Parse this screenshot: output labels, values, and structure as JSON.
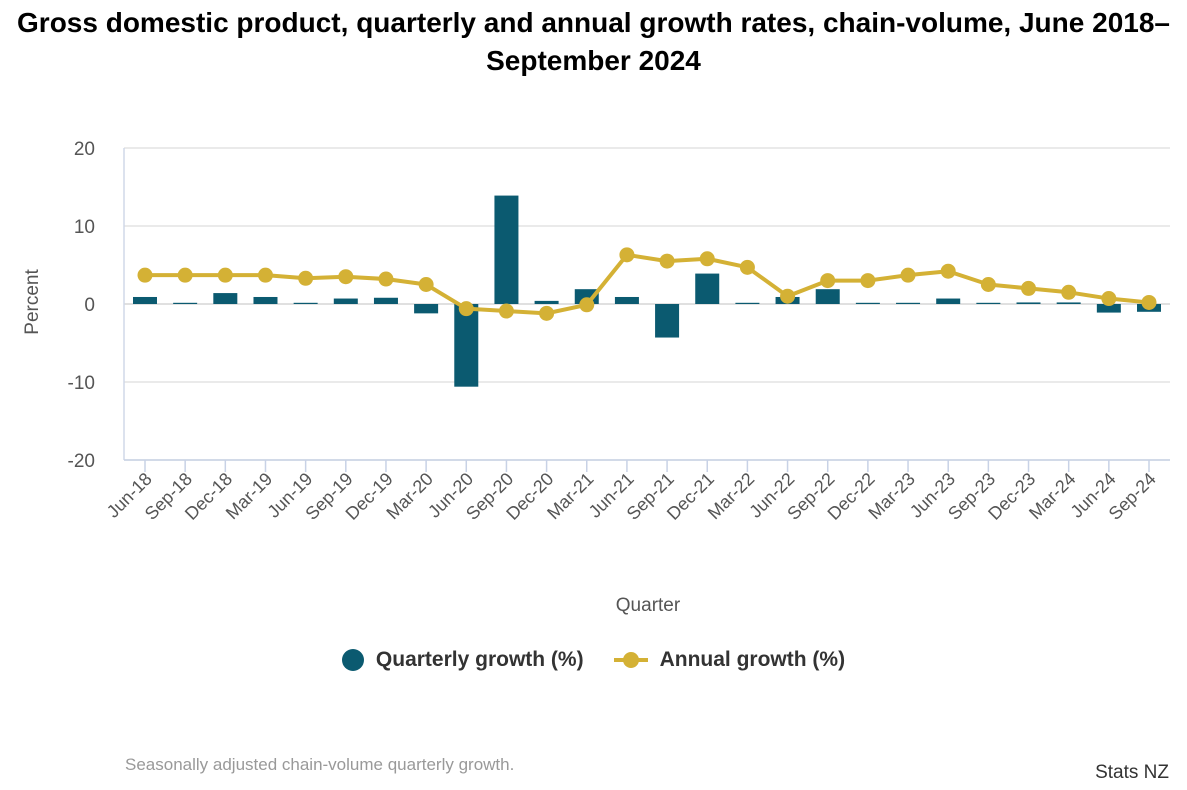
{
  "chart_data": {
    "type": "bar",
    "title": "Gross domestic product, quarterly and annual growth rates, chain-volume, June 2018–September 2024",
    "xlabel": "Quarter",
    "ylabel": "Percent",
    "ylim": [
      -20,
      20
    ],
    "yticks": [
      "20",
      "10",
      "0",
      "-10",
      "-20"
    ],
    "grid": true,
    "legend_position": "bottom",
    "categories": [
      "Jun-18",
      "Sep-18",
      "Dec-18",
      "Mar-19",
      "Jun-19",
      "Sep-19",
      "Dec-19",
      "Mar-20",
      "Jun-20",
      "Sep-20",
      "Dec-20",
      "Mar-21",
      "Jun-21",
      "Sep-21",
      "Dec-21",
      "Mar-22",
      "Jun-22",
      "Sep-22",
      "Dec-22",
      "Mar-23",
      "Jun-23",
      "Sep-23",
      "Dec-23",
      "Mar-24",
      "Jun-24",
      "Sep-24"
    ],
    "series": [
      {
        "name": "Quarterly growth (%)",
        "type": "bar",
        "color": "#0b5a70",
        "values": [
          0.9,
          0.0,
          1.4,
          0.9,
          0.1,
          0.7,
          0.8,
          -1.2,
          -10.6,
          13.9,
          0.4,
          1.9,
          0.9,
          -4.3,
          3.9,
          0.1,
          0.9,
          1.9,
          0.0,
          0.1,
          0.7,
          0.0,
          0.2,
          0.2,
          -1.1,
          -1.0
        ]
      },
      {
        "name": "Annual growth (%)",
        "type": "line",
        "color": "#d4b135",
        "values": [
          3.7,
          3.7,
          3.7,
          3.7,
          3.3,
          3.5,
          3.2,
          2.5,
          -0.6,
          -0.9,
          -1.2,
          -0.1,
          6.3,
          5.5,
          5.8,
          4.7,
          1.0,
          3.0,
          3.0,
          3.7,
          4.2,
          2.5,
          2.0,
          1.5,
          0.7,
          0.2
        ]
      }
    ]
  },
  "legend": {
    "quarterly_label": "Quarterly growth (%)",
    "annual_label": "Annual growth (%)"
  },
  "footnote": "Seasonally adjusted chain-volume quarterly growth.",
  "credit": "Stats NZ"
}
